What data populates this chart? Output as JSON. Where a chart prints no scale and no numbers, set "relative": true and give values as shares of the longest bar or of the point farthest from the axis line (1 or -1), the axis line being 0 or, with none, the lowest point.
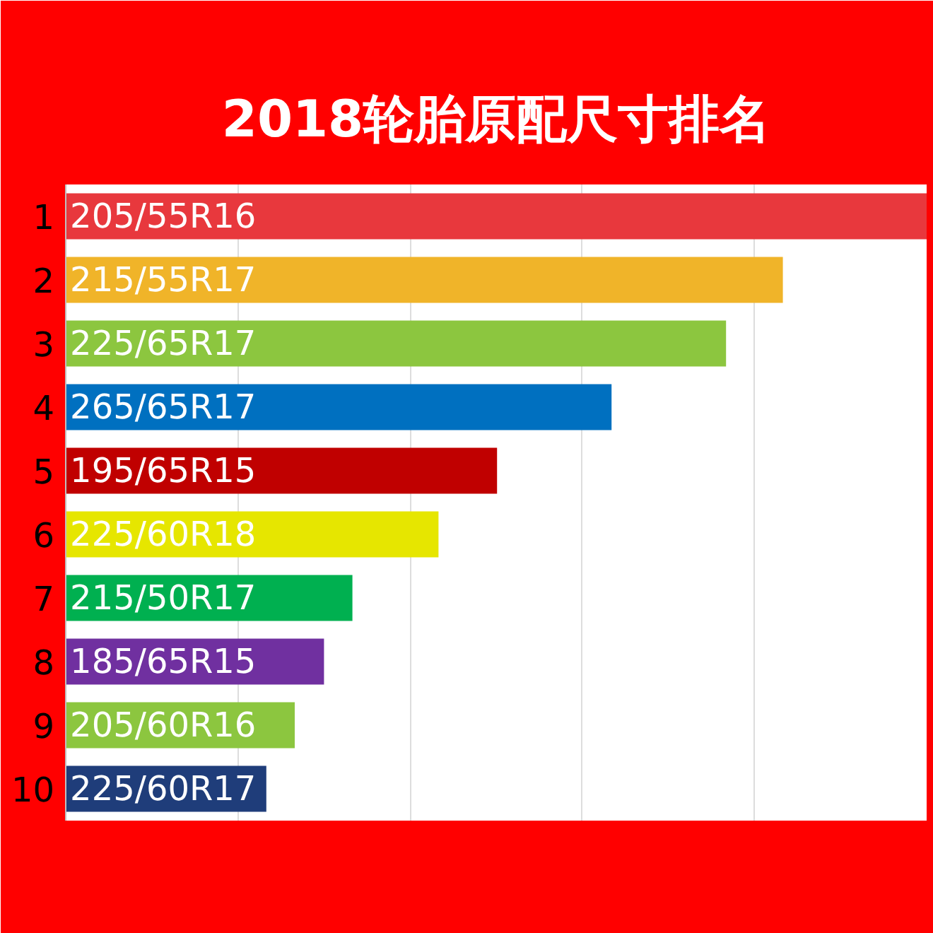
{
  "chart_data": {
    "type": "bar",
    "orientation": "horizontal",
    "relative": true,
    "title": "2018轮胎原配尺寸排名",
    "categories": [
      "1",
      "2",
      "3",
      "4",
      "5",
      "6",
      "7",
      "8",
      "9",
      "10"
    ],
    "values": [
      1,
      0.833,
      0.767,
      0.634,
      0.501,
      0.433,
      0.333,
      0.3,
      0.266,
      0.233
    ],
    "colors": [
      "#e8383d",
      "#f0b429",
      "#8cc63f",
      "#0070c0",
      "#c00000",
      "#e6e600",
      "#00b050",
      "#7030a0",
      "#8cc63f",
      "#1f3d7a"
    ],
    "annotations": [
      {
        "text": "205/55R16",
        "y": "1"
      },
      {
        "text": "215/55R17",
        "y": "2"
      },
      {
        "text": "225/65R17",
        "y": "3"
      },
      {
        "text": "265/65R17",
        "y": "4"
      },
      {
        "text": "195/65R15",
        "y": "5"
      },
      {
        "text": "225/60R18",
        "y": "6"
      },
      {
        "text": "215/50R17",
        "y": "7"
      },
      {
        "text": "185/65R15",
        "y": "8"
      },
      {
        "text": "205/60R16",
        "y": "9"
      },
      {
        "text": "225/60R17",
        "y": "10"
      }
    ],
    "grid": "x"
  }
}
